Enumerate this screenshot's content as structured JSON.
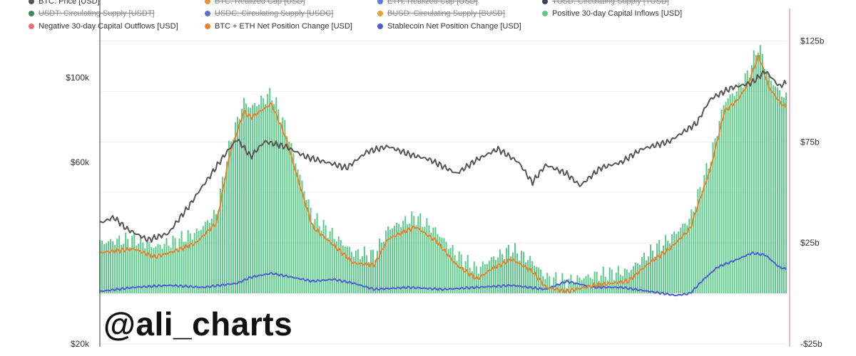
{
  "chart_data": {
    "type": "line",
    "title": "",
    "watermark": "@ali_charts",
    "legend_placement": "top",
    "legend": [
      {
        "name": "BTC: Price [USD]",
        "color": "#555555",
        "enabled": true
      },
      {
        "name": "BTC: Realized Cap [USD]",
        "color": "#e8913a",
        "enabled": false
      },
      {
        "name": "ETH: Realized Cap [USD]",
        "color": "#5b7ee5",
        "enabled": false
      },
      {
        "name": "TUSD: Circulating Supply [TUSD]",
        "color": "#3a4257",
        "enabled": false
      },
      {
        "name": "USDT: Circulating Supply [USDT]",
        "color": "#3a8a5c",
        "enabled": false
      },
      {
        "name": "USDC: Circulating Supply [USDC]",
        "color": "#5676c9",
        "enabled": false
      },
      {
        "name": "BUSD: Circulating Supply [BUSD]",
        "color": "#e0a33a",
        "enabled": false
      },
      {
        "name": "Positive 30-day Capital Inflows [USD]",
        "color": "#5cc98a",
        "enabled": true
      },
      {
        "name": "Negative 30-day Capital Outflows [USD]",
        "color": "#e57373",
        "enabled": true
      },
      {
        "name": "BTC + ETH Net Position Change [USD]",
        "color": "#e8812a",
        "enabled": true
      },
      {
        "name": "Stablecoin Net Position Change [USD]",
        "color": "#4f5ad6",
        "enabled": true
      }
    ],
    "y_left": {
      "scale": "log",
      "ticks": [
        "$20k",
        "$60k",
        "$100k"
      ],
      "tick_values": [
        20000,
        60000,
        100000
      ],
      "range": [
        20000,
        150000
      ]
    },
    "y_right": {
      "scale": "linear",
      "ticks": [
        "-$25b",
        "$25b",
        "$75b",
        "$125b"
      ],
      "tick_values": [
        -25,
        25,
        75,
        125
      ],
      "range": [
        -25,
        140
      ],
      "unit": "USD billions"
    },
    "series": [
      {
        "name": "BTC: Price [USD]",
        "axis": "left",
        "color": "#555555",
        "anchors": [
          [
            0,
            41500
          ],
          [
            0.02,
            43000
          ],
          [
            0.04,
            40000
          ],
          [
            0.07,
            37500
          ],
          [
            0.1,
            39000
          ],
          [
            0.13,
            46000
          ],
          [
            0.16,
            55000
          ],
          [
            0.18,
            62000
          ],
          [
            0.2,
            69000
          ],
          [
            0.22,
            62000
          ],
          [
            0.24,
            68000
          ],
          [
            0.27,
            66000
          ],
          [
            0.3,
            62000
          ],
          [
            0.33,
            60000
          ],
          [
            0.36,
            58000
          ],
          [
            0.39,
            64000
          ],
          [
            0.42,
            66000
          ],
          [
            0.45,
            63000
          ],
          [
            0.48,
            61000
          ],
          [
            0.52,
            56000
          ],
          [
            0.55,
            61000
          ],
          [
            0.58,
            65000
          ],
          [
            0.61,
            60000
          ],
          [
            0.63,
            53000
          ],
          [
            0.65,
            59000
          ],
          [
            0.68,
            56000
          ],
          [
            0.7,
            52000
          ],
          [
            0.73,
            58000
          ],
          [
            0.76,
            60000
          ],
          [
            0.79,
            65000
          ],
          [
            0.83,
            68000
          ],
          [
            0.87,
            76000
          ],
          [
            0.89,
            88000
          ],
          [
            0.92,
            94000
          ],
          [
            0.95,
            97000
          ],
          [
            0.97,
            104000
          ],
          [
            0.99,
            95000
          ],
          [
            1.0,
            97000
          ]
        ]
      },
      {
        "name": "BTC + ETH Net Position Change [USD]",
        "axis": "right",
        "color": "#e8812a",
        "anchors": [
          [
            0,
            20
          ],
          [
            0.02,
            21
          ],
          [
            0.05,
            22
          ],
          [
            0.08,
            18
          ],
          [
            0.11,
            21
          ],
          [
            0.14,
            25
          ],
          [
            0.17,
            35
          ],
          [
            0.19,
            70
          ],
          [
            0.21,
            90
          ],
          [
            0.22,
            87
          ],
          [
            0.25,
            94
          ],
          [
            0.27,
            78
          ],
          [
            0.29,
            55
          ],
          [
            0.31,
            33
          ],
          [
            0.34,
            24
          ],
          [
            0.37,
            15
          ],
          [
            0.4,
            14
          ],
          [
            0.42,
            27
          ],
          [
            0.46,
            33
          ],
          [
            0.49,
            26
          ],
          [
            0.52,
            14
          ],
          [
            0.55,
            7
          ],
          [
            0.57,
            12
          ],
          [
            0.6,
            17
          ],
          [
            0.63,
            11
          ],
          [
            0.65,
            3
          ],
          [
            0.68,
            1
          ],
          [
            0.72,
            4
          ],
          [
            0.77,
            6
          ],
          [
            0.8,
            15
          ],
          [
            0.83,
            22
          ],
          [
            0.86,
            32
          ],
          [
            0.89,
            62
          ],
          [
            0.91,
            90
          ],
          [
            0.93,
            96
          ],
          [
            0.945,
            104
          ],
          [
            0.96,
            118
          ],
          [
            0.975,
            102
          ],
          [
            0.99,
            95
          ],
          [
            1.0,
            92
          ]
        ]
      },
      {
        "name": "Positive 30-day Capital Inflows [USD]",
        "axis": "right",
        "color": "#5cc98a",
        "style": "bars",
        "envelope_of": "BTC + ETH Net Position Change [USD]",
        "offset": 5
      },
      {
        "name": "Stablecoin Net Position Change [USD]",
        "axis": "right",
        "color": "#4f5ad6",
        "anchors": [
          [
            0,
            1
          ],
          [
            0.05,
            3
          ],
          [
            0.1,
            4
          ],
          [
            0.15,
            3
          ],
          [
            0.2,
            5
          ],
          [
            0.22,
            8
          ],
          [
            0.25,
            10
          ],
          [
            0.28,
            8
          ],
          [
            0.31,
            6
          ],
          [
            0.34,
            7
          ],
          [
            0.37,
            5
          ],
          [
            0.4,
            2
          ],
          [
            0.45,
            3
          ],
          [
            0.5,
            2
          ],
          [
            0.55,
            3
          ],
          [
            0.6,
            4
          ],
          [
            0.65,
            2
          ],
          [
            0.68,
            6
          ],
          [
            0.72,
            3
          ],
          [
            0.76,
            3
          ],
          [
            0.8,
            1
          ],
          [
            0.84,
            -1
          ],
          [
            0.86,
            0
          ],
          [
            0.88,
            7
          ],
          [
            0.9,
            13
          ],
          [
            0.93,
            17
          ],
          [
            0.95,
            20
          ],
          [
            0.97,
            19
          ],
          [
            0.99,
            13
          ],
          [
            1.0,
            12
          ]
        ]
      }
    ]
  }
}
